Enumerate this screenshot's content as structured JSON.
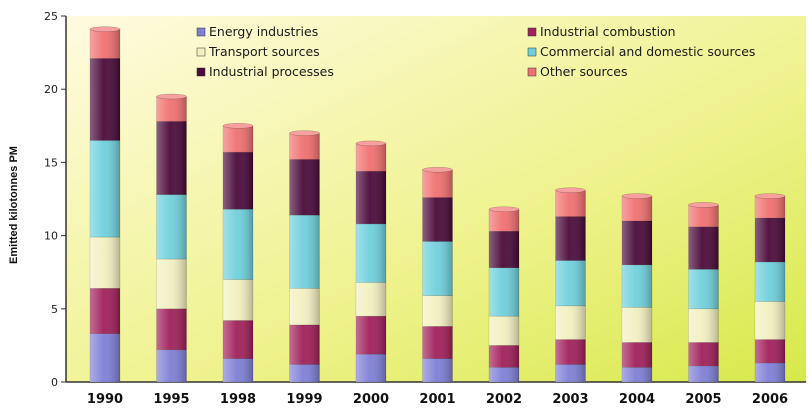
{
  "chart_data": {
    "type": "bar",
    "stacked": true,
    "title": "",
    "xlabel": "",
    "ylabel": "Emitted kilotonnes PM",
    "ylim": [
      0,
      25
    ],
    "yticks": [
      "0",
      "5",
      "10",
      "15",
      "20",
      "25"
    ],
    "grid": false,
    "legend_position": "top-right",
    "categories": [
      "1990",
      "1995",
      "1998",
      "1999",
      "2000",
      "2001",
      "2002",
      "2003",
      "2004",
      "2005",
      "2006"
    ],
    "series": [
      {
        "name": "Energy industries",
        "color": "#7f7fd6",
        "values": [
          3.3,
          2.2,
          1.6,
          1.2,
          1.9,
          1.6,
          1.0,
          1.2,
          1.0,
          1.1,
          1.3
        ]
      },
      {
        "name": "Industrial combustion",
        "color": "#a0205a",
        "values": [
          3.1,
          2.8,
          2.6,
          2.7,
          2.6,
          2.2,
          1.5,
          1.7,
          1.7,
          1.6,
          1.6
        ]
      },
      {
        "name": "Transport sources",
        "color": "#f2f0c0",
        "values": [
          3.5,
          3.4,
          2.8,
          2.5,
          2.3,
          2.1,
          2.0,
          2.3,
          2.4,
          2.3,
          2.6
        ]
      },
      {
        "name": "Commercial and domestic sources",
        "color": "#6fd0dc",
        "values": [
          6.6,
          4.4,
          4.8,
          5.0,
          4.0,
          3.7,
          3.3,
          3.1,
          2.9,
          2.7,
          2.7
        ]
      },
      {
        "name": "Industrial processes",
        "color": "#4a0a3a",
        "values": [
          5.6,
          5.0,
          3.9,
          3.8,
          3.6,
          3.0,
          2.5,
          3.0,
          3.0,
          2.9,
          3.0
        ]
      },
      {
        "name": "Other sources",
        "color": "#f07070",
        "values": [
          2.0,
          1.7,
          1.8,
          1.8,
          1.9,
          1.9,
          1.5,
          1.8,
          1.7,
          1.5,
          1.5
        ]
      }
    ]
  }
}
